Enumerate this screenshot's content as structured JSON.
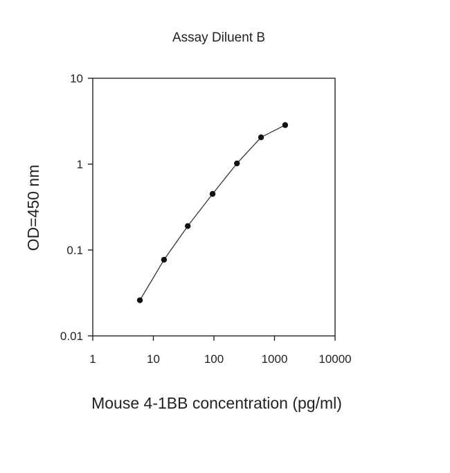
{
  "chart_data": {
    "type": "scatter",
    "title": "Assay Diluent B",
    "xlabel": "Mouse 4-1BB concentration (pg/ml)",
    "ylabel": "OD=450 nm",
    "x_scale": "log",
    "y_scale": "log",
    "xlim": [
      1,
      10000
    ],
    "ylim": [
      0.01,
      10
    ],
    "x_ticks": [
      1,
      10,
      100,
      1000,
      10000
    ],
    "x_tick_labels": [
      "1",
      "10",
      "100",
      "1000",
      "10000"
    ],
    "y_ticks": [
      0.01,
      0.1,
      1,
      10
    ],
    "y_tick_labels": [
      "0.01",
      "0.1",
      "1",
      "10"
    ],
    "grid": false,
    "line": true,
    "series": [
      {
        "x": [
          6,
          15,
          37,
          95,
          240,
          600,
          1500
        ],
        "y": [
          0.026,
          0.077,
          0.19,
          0.45,
          1.02,
          2.05,
          2.85
        ]
      }
    ],
    "colors": {
      "line": "#333333",
      "marker": "#111111",
      "axis": "#222222"
    }
  }
}
